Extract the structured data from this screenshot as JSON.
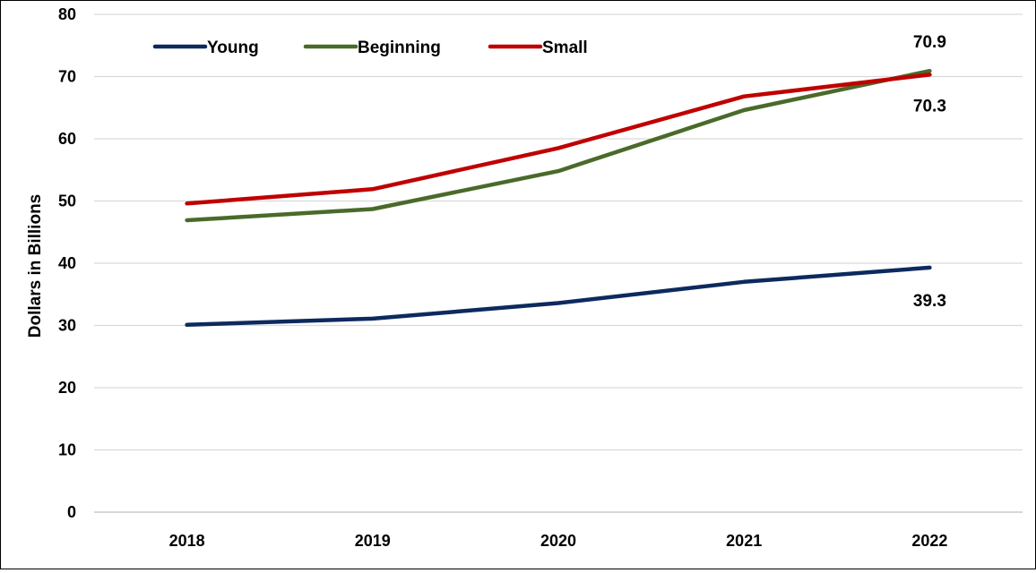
{
  "chart_data": {
    "type": "line",
    "title": "",
    "xlabel": "",
    "ylabel": "Dollars in Billions",
    "categories": [
      "2018",
      "2019",
      "2020",
      "2021",
      "2022"
    ],
    "ylim": [
      0,
      80
    ],
    "yticks": [
      "0",
      "10",
      "20",
      "30",
      "40",
      "50",
      "60",
      "70",
      "80"
    ],
    "grid": true,
    "legend_position": "top-left",
    "series": [
      {
        "name": "Young",
        "color": "#0d2a5e",
        "values": [
          30.1,
          31.1,
          33.6,
          37.0,
          39.3
        ]
      },
      {
        "name": "Beginning",
        "color": "#4a6a2a",
        "values": [
          46.9,
          48.7,
          54.8,
          64.6,
          70.9
        ]
      },
      {
        "name": "Small",
        "color": "#c00000",
        "values": [
          49.6,
          51.9,
          58.5,
          66.8,
          70.3
        ]
      }
    ],
    "data_labels": [
      {
        "text": "70.9",
        "series": "Beginning",
        "category": "2022"
      },
      {
        "text": "70.3",
        "series": "Small",
        "category": "2022"
      },
      {
        "text": "39.3",
        "series": "Young",
        "category": "2022"
      }
    ]
  }
}
